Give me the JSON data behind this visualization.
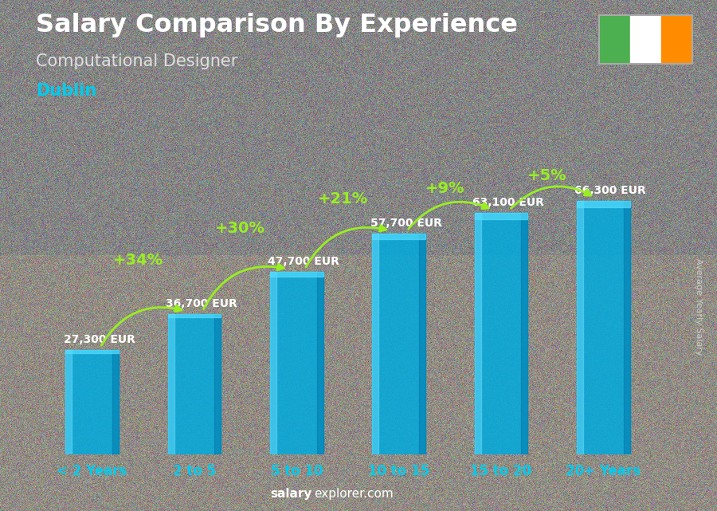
{
  "title": "Salary Comparison By Experience",
  "subtitle": "Computational Designer",
  "city": "Dublin",
  "categories": [
    "< 2 Years",
    "2 to 5",
    "5 to 10",
    "10 to 15",
    "15 to 20",
    "20+ Years"
  ],
  "values": [
    27300,
    36700,
    47700,
    57700,
    63100,
    66300
  ],
  "labels": [
    "27,300 EUR",
    "36,700 EUR",
    "47,700 EUR",
    "57,700 EUR",
    "63,100 EUR",
    "66,300 EUR"
  ],
  "pct_changes": [
    null,
    "+34%",
    "+30%",
    "+21%",
    "+9%",
    "+5%"
  ],
  "bar_color": "#00aadd",
  "bar_alpha": 0.85,
  "bg_color": "#808080",
  "title_color": "#ffffff",
  "subtitle_color": "#e0e0e0",
  "city_color": "#00ccee",
  "label_color": "#ffffff",
  "pct_color": "#99ee22",
  "xtick_color": "#00ccee",
  "footer_salary_color": "#ffffff",
  "footer_explorer_color": "#ffffff",
  "ylabel_text": "Average Yearly Salary",
  "ylabel_color": "#cccccc",
  "ylim": [
    0,
    80000
  ],
  "bar_width": 0.52,
  "flag_green": "#4CAF50",
  "flag_white": "#ffffff",
  "flag_orange": "#FF8C00",
  "fig_bg": "#888888"
}
